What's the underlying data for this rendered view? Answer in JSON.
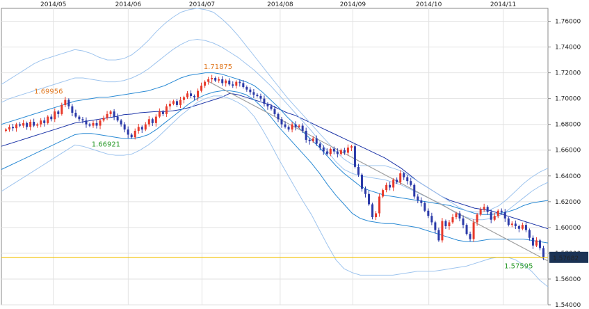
{
  "chart_data": {
    "type": "candlestick",
    "title": "",
    "xlabel": "",
    "ylabel": "",
    "ylim": [
      1.54,
      1.77
    ],
    "grid": true,
    "x_ticks": [
      "2014/05",
      "2014/06",
      "2014/07",
      "2014/08",
      "2014/09",
      "2014/10",
      "2014/11"
    ],
    "y_ticks": [
      "1.76000",
      "1.74000",
      "1.72000",
      "1.70000",
      "1.68000",
      "1.66000",
      "1.64000",
      "1.62000",
      "1.60000",
      "1.58000",
      "1.56000",
      "1.54000"
    ],
    "current_price": {
      "label": "1.57682",
      "value": 1.57682,
      "color": "#f2c200",
      "box_color": "#1b3355"
    },
    "annotations": [
      {
        "text": "1.69956",
        "value": 1.69956,
        "color": "#e07820"
      },
      {
        "text": "1.66921",
        "value": 1.66921,
        "color": "#2a9a2a"
      },
      {
        "text": "1.71875",
        "value": 1.71875,
        "color": "#e07820"
      },
      {
        "text": "1.57595",
        "value": 1.57595,
        "color": "#2a9a2a"
      }
    ],
    "colors": {
      "up": "#e8392a",
      "down": "#2b3aa8",
      "ma": "#1e36a8",
      "band1": "#2a8ad4",
      "band2": "#9ec4ee",
      "trend": "#a0a0a0"
    },
    "candles": [
      1.676,
      1.678,
      1.677,
      1.68,
      1.679,
      1.681,
      1.678,
      1.682,
      1.679,
      1.68,
      1.683,
      1.681,
      1.686,
      1.684,
      1.69,
      1.688,
      1.695,
      1.699,
      1.694,
      1.689,
      1.686,
      1.684,
      1.683,
      1.68,
      1.679,
      1.681,
      1.679,
      1.683,
      1.685,
      1.688,
      1.69,
      1.686,
      1.683,
      1.68,
      1.676,
      1.672,
      1.67,
      1.675,
      1.678,
      1.676,
      1.68,
      1.684,
      1.681,
      1.686,
      1.69,
      1.688,
      1.694,
      1.696,
      1.698,
      1.695,
      1.699,
      1.701,
      1.704,
      1.702,
      1.701,
      1.706,
      1.71,
      1.713,
      1.715,
      1.716,
      1.714,
      1.715,
      1.712,
      1.714,
      1.711,
      1.71,
      1.713,
      1.712,
      1.709,
      1.707,
      1.705,
      1.703,
      1.702,
      1.7,
      1.696,
      1.694,
      1.692,
      1.688,
      1.684,
      1.68,
      1.678,
      1.676,
      1.68,
      1.678,
      1.679,
      1.675,
      1.668,
      1.667,
      1.669,
      1.665,
      1.662,
      1.659,
      1.657,
      1.661,
      1.659,
      1.657,
      1.66,
      1.658,
      1.662,
      1.663,
      1.647,
      1.641,
      1.63,
      1.626,
      1.618,
      1.608,
      1.611,
      1.624,
      1.629,
      1.633,
      1.631,
      1.637,
      1.635,
      1.642,
      1.639,
      1.636,
      1.633,
      1.624,
      1.621,
      1.619,
      1.613,
      1.609,
      1.604,
      1.598,
      1.59,
      1.605,
      1.601,
      1.604,
      1.608,
      1.611,
      1.607,
      1.602,
      1.595,
      1.591,
      1.604,
      1.61,
      1.614,
      1.616,
      1.612,
      1.606,
      1.609,
      1.613,
      1.612,
      1.607,
      1.602,
      1.603,
      1.601,
      1.599,
      1.602,
      1.598,
      1.592,
      1.586,
      1.59,
      1.584,
      1.577
    ],
    "series": [
      {
        "values": [
          1.663,
          1.665,
          1.667,
          1.669,
          1.671,
          1.673,
          1.675,
          1.677,
          1.679,
          1.681,
          1.682,
          1.683,
          1.684,
          1.685,
          1.686,
          1.6875,
          1.688,
          1.689,
          1.6895,
          1.69,
          1.69,
          1.6905,
          1.6915,
          1.693,
          1.695,
          1.697,
          1.699,
          1.701,
          1.704,
          1.703,
          1.701,
          1.699,
          1.697,
          1.695,
          1.692,
          1.689,
          1.687,
          1.684,
          1.681,
          1.678,
          1.675,
          1.672,
          1.669,
          1.666,
          1.663,
          1.66,
          1.657,
          1.654,
          1.65,
          1.646,
          1.641,
          1.636,
          1.632,
          1.628,
          1.624,
          1.621,
          1.619,
          1.617,
          1.615,
          1.614,
          1.613,
          1.611,
          1.609,
          1.607,
          1.605,
          1.603,
          1.601,
          1.599
        ]
      },
      {
        "values": [
          1.645,
          1.648,
          1.651,
          1.654,
          1.657,
          1.66,
          1.663,
          1.666,
          1.669,
          1.672,
          1.673,
          1.673,
          1.672,
          1.671,
          1.67,
          1.669,
          1.669,
          1.67,
          1.672,
          1.676,
          1.681,
          1.686,
          1.691,
          1.696,
          1.7,
          1.703,
          1.705,
          1.706,
          1.706,
          1.705,
          1.703,
          1.699,
          1.693,
          1.686,
          1.678,
          1.671,
          1.664,
          1.657,
          1.65,
          1.642,
          1.633,
          1.625,
          1.618,
          1.611,
          1.607,
          1.605,
          1.604,
          1.603,
          1.603,
          1.602,
          1.601,
          1.6,
          1.598,
          1.596,
          1.594,
          1.592,
          1.59,
          1.589,
          1.589,
          1.59,
          1.591,
          1.591,
          1.591,
          1.591,
          1.591,
          1.59,
          1.589,
          1.588
        ]
      },
      {
        "values": [
          1.628,
          1.632,
          1.636,
          1.64,
          1.644,
          1.648,
          1.652,
          1.656,
          1.66,
          1.664,
          1.663,
          1.661,
          1.659,
          1.657,
          1.656,
          1.656,
          1.657,
          1.66,
          1.664,
          1.669,
          1.675,
          1.681,
          1.687,
          1.692,
          1.697,
          1.7,
          1.702,
          1.702,
          1.7,
          1.697,
          1.693,
          1.686,
          1.676,
          1.665,
          1.653,
          1.642,
          1.631,
          1.62,
          1.61,
          1.598,
          1.586,
          1.575,
          1.568,
          1.565,
          1.563,
          1.563,
          1.563,
          1.563,
          1.563,
          1.564,
          1.565,
          1.566,
          1.566,
          1.566,
          1.567,
          1.568,
          1.569,
          1.57,
          1.572,
          1.574,
          1.576,
          1.577,
          1.577,
          1.575,
          1.571,
          1.566,
          1.559,
          1.554
        ]
      },
      {
        "values": [
          1.68,
          1.682,
          1.684,
          1.686,
          1.688,
          1.69,
          1.692,
          1.694,
          1.696,
          1.698,
          1.699,
          1.7,
          1.701,
          1.701,
          1.702,
          1.703,
          1.704,
          1.705,
          1.706,
          1.708,
          1.71,
          1.713,
          1.716,
          1.718,
          1.719,
          1.72,
          1.72,
          1.719,
          1.717,
          1.715,
          1.713,
          1.71,
          1.705,
          1.699,
          1.693,
          1.686,
          1.68,
          1.674,
          1.668,
          1.662,
          1.655,
          1.648,
          1.642,
          1.637,
          1.632,
          1.629,
          1.627,
          1.625,
          1.624,
          1.623,
          1.622,
          1.621,
          1.62,
          1.619,
          1.618,
          1.617,
          1.615,
          1.613,
          1.611,
          1.61,
          1.61,
          1.611,
          1.612,
          1.614,
          1.617,
          1.619,
          1.62,
          1.621
        ]
      },
      {
        "values": [
          1.697,
          1.7,
          1.702,
          1.704,
          1.706,
          1.708,
          1.71,
          1.712,
          1.714,
          1.716,
          1.716,
          1.715,
          1.714,
          1.713,
          1.713,
          1.714,
          1.716,
          1.719,
          1.723,
          1.728,
          1.733,
          1.738,
          1.742,
          1.745,
          1.746,
          1.745,
          1.743,
          1.74,
          1.736,
          1.732,
          1.727,
          1.722,
          1.716,
          1.71,
          1.703,
          1.696,
          1.689,
          1.682,
          1.675,
          1.667,
          1.659,
          1.651,
          1.645,
          1.642,
          1.64,
          1.639,
          1.638,
          1.637,
          1.635,
          1.633,
          1.63,
          1.627,
          1.624,
          1.621,
          1.618,
          1.614,
          1.61,
          1.608,
          1.606,
          1.606,
          1.607,
          1.609,
          1.613,
          1.618,
          1.623,
          1.628,
          1.632,
          1.635
        ]
      },
      {
        "values": [
          1.711,
          1.715,
          1.719,
          1.723,
          1.727,
          1.73,
          1.732,
          1.734,
          1.736,
          1.738,
          1.737,
          1.735,
          1.732,
          1.73,
          1.73,
          1.731,
          1.734,
          1.739,
          1.745,
          1.752,
          1.758,
          1.763,
          1.767,
          1.769,
          1.77,
          1.769,
          1.767,
          1.762,
          1.756,
          1.749,
          1.741,
          1.733,
          1.725,
          1.717,
          1.709,
          1.701,
          1.694,
          1.687,
          1.68,
          1.673,
          1.666,
          1.659,
          1.653,
          1.649,
          1.648,
          1.648,
          1.648,
          1.648,
          1.646,
          1.644,
          1.64,
          1.636,
          1.632,
          1.628,
          1.624,
          1.62,
          1.616,
          1.613,
          1.612,
          1.612,
          1.614,
          1.617,
          1.622,
          1.628,
          1.634,
          1.639,
          1.643,
          1.646
        ]
      }
    ],
    "trendline": [
      [
        0.38,
        1.713
      ],
      [
        1.0,
        1.574
      ]
    ]
  }
}
